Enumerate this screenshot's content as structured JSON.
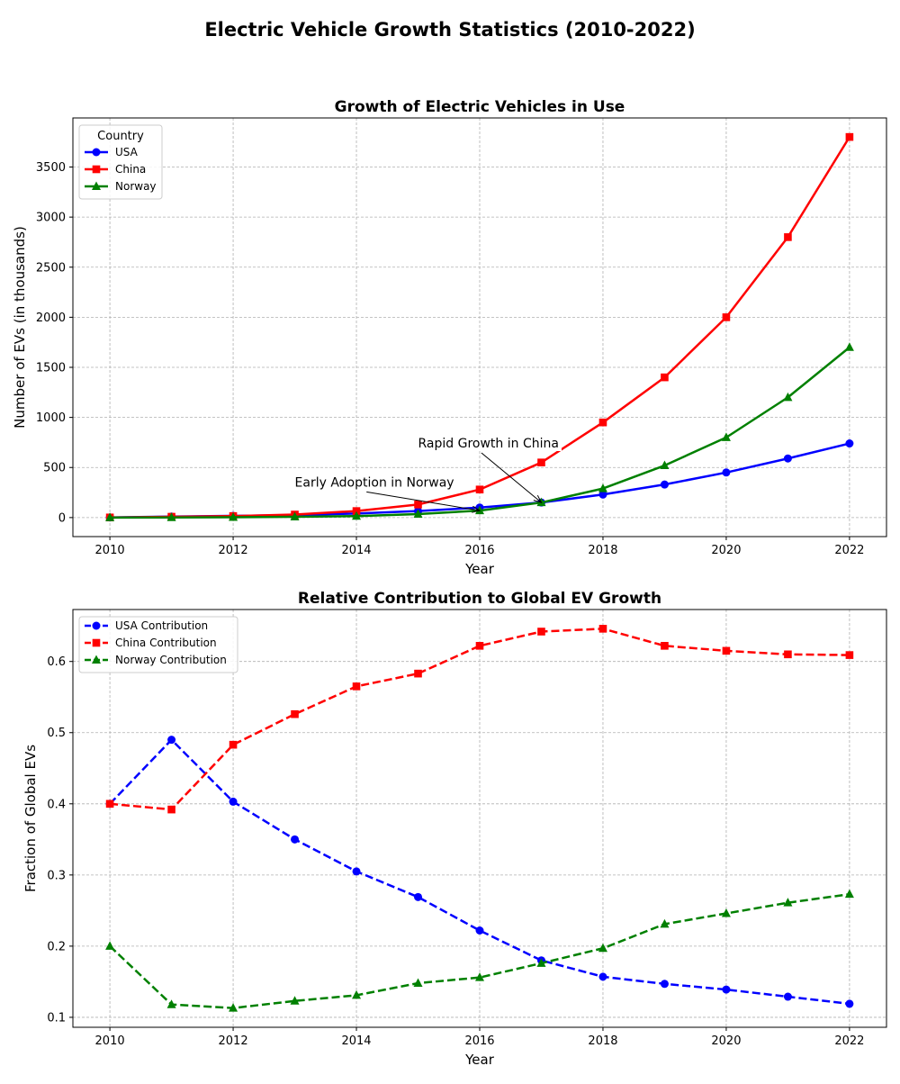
{
  "figure": {
    "title": "Electric Vehicle Growth Statistics (2010-2022)"
  },
  "chart_data": [
    {
      "type": "line",
      "title": "Growth of Electric Vehicles in Use",
      "xlabel": "Year",
      "ylabel": "Number of EVs (in thousands)",
      "x": [
        2010,
        2011,
        2012,
        2013,
        2014,
        2015,
        2016,
        2017,
        2018,
        2019,
        2020,
        2021,
        2022
      ],
      "xlim": [
        2009.4,
        2022.6
      ],
      "ylim": [
        -190,
        3990
      ],
      "xticks": [
        2010,
        2012,
        2014,
        2016,
        2018,
        2020,
        2022
      ],
      "yticks": [
        0,
        500,
        1000,
        1500,
        2000,
        2500,
        3000,
        3500
      ],
      "grid": true,
      "legend": {
        "title": "Country",
        "placement": "top-left"
      },
      "series": [
        {
          "name": "USA",
          "color": "#0000ff",
          "marker": "circle",
          "linestyle": "solid",
          "values": [
            1,
            10,
            17,
            25,
            40,
            65,
            100,
            150,
            230,
            330,
            450,
            590,
            740
          ]
        },
        {
          "name": "China",
          "color": "#ff0000",
          "marker": "square",
          "linestyle": "solid",
          "values": [
            1,
            8,
            15,
            30,
            65,
            130,
            280,
            550,
            950,
            1400,
            2000,
            2800,
            3800
          ]
        },
        {
          "name": "Norway",
          "color": "#008000",
          "marker": "triangle",
          "linestyle": "solid",
          "values": [
            0,
            1,
            3,
            8,
            15,
            35,
            70,
            150,
            290,
            520,
            800,
            1200,
            1700
          ]
        }
      ],
      "annotations": [
        {
          "text": "Rapid Growth in China",
          "text_xy": [
            2015,
            700
          ],
          "target_xy": [
            2017,
            150
          ]
        },
        {
          "text": "Early Adoption in Norway",
          "text_xy": [
            2013,
            310
          ],
          "target_xy": [
            2016,
            70
          ]
        }
      ]
    },
    {
      "type": "line",
      "title": "Relative Contribution to Global EV Growth",
      "xlabel": "Year",
      "ylabel": "Fraction of Global EVs",
      "x": [
        2010,
        2011,
        2012,
        2013,
        2014,
        2015,
        2016,
        2017,
        2018,
        2019,
        2020,
        2021,
        2022
      ],
      "xlim": [
        2009.4,
        2022.6
      ],
      "ylim": [
        0.086,
        0.673
      ],
      "xticks": [
        2010,
        2012,
        2014,
        2016,
        2018,
        2020,
        2022
      ],
      "yticks": [
        0.1,
        0.2,
        0.3,
        0.4,
        0.5,
        0.6
      ],
      "grid": true,
      "legend": {
        "title": "",
        "placement": "top-left"
      },
      "series": [
        {
          "name": "USA Contribution",
          "color": "#0000ff",
          "marker": "circle",
          "linestyle": "dashed",
          "values": [
            0.4,
            0.49,
            0.403,
            0.35,
            0.305,
            0.269,
            0.222,
            0.18,
            0.157,
            0.147,
            0.139,
            0.129,
            0.119
          ]
        },
        {
          "name": "China Contribution",
          "color": "#ff0000",
          "marker": "square",
          "linestyle": "dashed",
          "values": [
            0.4,
            0.392,
            0.483,
            0.526,
            0.565,
            0.583,
            0.622,
            0.642,
            0.646,
            0.622,
            0.615,
            0.61,
            0.609
          ]
        },
        {
          "name": "Norway Contribution",
          "color": "#008000",
          "marker": "triangle",
          "linestyle": "dashed",
          "values": [
            0.2,
            0.118,
            0.113,
            0.123,
            0.131,
            0.148,
            0.156,
            0.176,
            0.197,
            0.231,
            0.246,
            0.261,
            0.273
          ]
        }
      ]
    }
  ]
}
